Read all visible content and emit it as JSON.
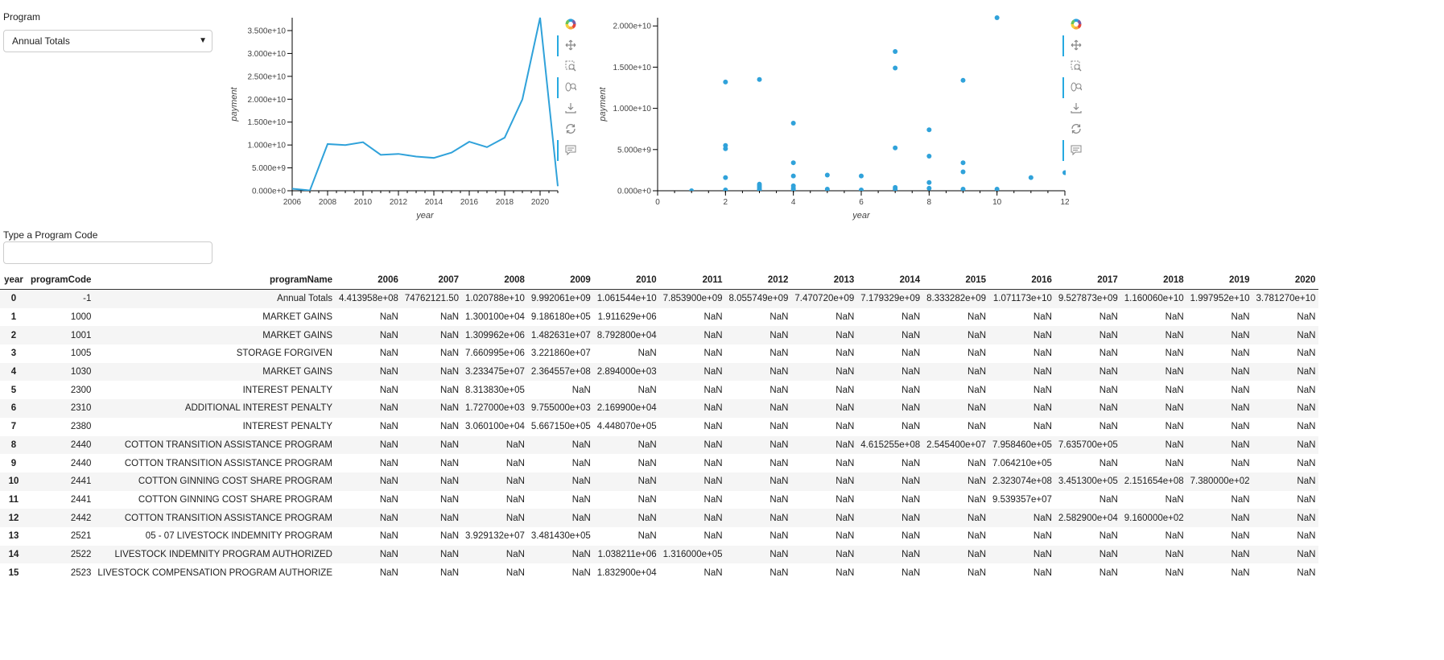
{
  "program": {
    "label": "Program",
    "selected": "Annual Totals"
  },
  "code": {
    "label": "Type a Program Code",
    "value": "",
    "placeholder": ""
  },
  "toolbar": {
    "icons": [
      "bokeh-logo-icon",
      "pan-icon",
      "box-zoom-icon",
      "wheel-zoom-icon",
      "save-icon",
      "reset-icon",
      "hover-icon"
    ]
  },
  "chart_data": [
    {
      "type": "line",
      "xlabel": "year",
      "ylabel": "payment",
      "xlim": [
        2006,
        2021
      ],
      "ylim": [
        0,
        37812700000.0
      ],
      "xticks": [
        "2006",
        "2008",
        "2010",
        "2012",
        "2014",
        "2016",
        "2018",
        "2020"
      ],
      "yticks": [
        "0.000e+0",
        "5.000e+9",
        "1.000e+10",
        "1.500e+10",
        "2.000e+10",
        "2.500e+10",
        "3.000e+10",
        "3.500e+10"
      ],
      "color": "#30a2da",
      "x": [
        2006,
        2007,
        2008,
        2009,
        2010,
        2011,
        2012,
        2013,
        2014,
        2015,
        2016,
        2017,
        2018,
        2019,
        2020,
        2021
      ],
      "y": [
        441395800.0,
        74762121.0,
        10207880000.0,
        9992061000.0,
        10615440000.0,
        7853900000.0,
        8055749000.0,
        7470720000.0,
        7179329000.0,
        8333282000.0,
        10711730000.0,
        9527873000.0,
        11600600000.0,
        19979520000.0,
        37812700000.0,
        1000000000.0
      ]
    },
    {
      "type": "scatter",
      "xlabel": "year",
      "ylabel": "payment",
      "xlim": [
        0,
        12
      ],
      "ylim": [
        0,
        21000000000.0
      ],
      "xticks": [
        "0",
        "2",
        "4",
        "6",
        "8",
        "10",
        "12"
      ],
      "yticks": [
        "0.000e+0",
        "5.000e+9",
        "1.000e+10",
        "1.500e+10",
        "2.000e+10"
      ],
      "color": "#30a2da",
      "x": [
        1,
        2,
        2,
        2,
        2,
        2,
        3,
        3,
        3,
        3,
        3,
        3,
        4,
        4,
        4,
        4,
        4,
        4,
        5,
        5,
        6,
        6,
        7,
        7,
        7,
        7,
        7,
        8,
        8,
        8,
        8,
        9,
        9,
        9,
        9,
        10,
        10,
        11,
        12
      ],
      "y": [
        0,
        13200000000.0,
        5500000000.0,
        5100000000.0,
        1600000000.0,
        100000000.0,
        13500000000.0,
        800000000.0,
        600000000.0,
        400000000.0,
        200000000.0,
        100000000.0,
        8200000000.0,
        3400000000.0,
        1800000000.0,
        600000000.0,
        300000000.0,
        100000000.0,
        1900000000.0,
        200000000.0,
        1800000000.0,
        100000000.0,
        16900000000.0,
        14900000000.0,
        5200000000.0,
        400000000.0,
        200000000.0,
        7400000000.0,
        4200000000.0,
        1000000000.0,
        300000000.0,
        13400000000.0,
        3400000000.0,
        2300000000.0,
        200000000.0,
        21000000000.0,
        200000000.0,
        1600000000.0,
        2200000000.0
      ]
    }
  ],
  "table": {
    "columns": [
      "year",
      "programCode",
      "programName",
      "2006",
      "2007",
      "2008",
      "2009",
      "2010",
      "2011",
      "2012",
      "2013",
      "2014",
      "2015",
      "2016",
      "2017",
      "2018",
      "2019",
      "2020"
    ],
    "rows": [
      [
        "0",
        "-1",
        "Annual Totals",
        "4.413958e+08",
        "74762121.50",
        "1.020788e+10",
        "9.992061e+09",
        "1.061544e+10",
        "7.853900e+09",
        "8.055749e+09",
        "7.470720e+09",
        "7.179329e+09",
        "8.333282e+09",
        "1.071173e+10",
        "9.527873e+09",
        "1.160060e+10",
        "1.997952e+10",
        "3.781270e+10"
      ],
      [
        "1",
        "1000",
        "MARKET GAINS",
        "NaN",
        "NaN",
        "1.300100e+04",
        "9.186180e+05",
        "1.911629e+06",
        "NaN",
        "NaN",
        "NaN",
        "NaN",
        "NaN",
        "NaN",
        "NaN",
        "NaN",
        "NaN",
        "NaN"
      ],
      [
        "2",
        "1001",
        "MARKET GAINS",
        "NaN",
        "NaN",
        "1.309962e+06",
        "1.482631e+07",
        "8.792800e+04",
        "NaN",
        "NaN",
        "NaN",
        "NaN",
        "NaN",
        "NaN",
        "NaN",
        "NaN",
        "NaN",
        "NaN"
      ],
      [
        "3",
        "1005",
        "STORAGE FORGIVEN",
        "NaN",
        "NaN",
        "7.660995e+06",
        "3.221860e+07",
        "NaN",
        "NaN",
        "NaN",
        "NaN",
        "NaN",
        "NaN",
        "NaN",
        "NaN",
        "NaN",
        "NaN",
        "NaN"
      ],
      [
        "4",
        "1030",
        "MARKET GAINS",
        "NaN",
        "NaN",
        "3.233475e+07",
        "2.364557e+08",
        "2.894000e+03",
        "NaN",
        "NaN",
        "NaN",
        "NaN",
        "NaN",
        "NaN",
        "NaN",
        "NaN",
        "NaN",
        "NaN"
      ],
      [
        "5",
        "2300",
        "INTEREST PENALTY",
        "NaN",
        "NaN",
        "8.313830e+05",
        "NaN",
        "NaN",
        "NaN",
        "NaN",
        "NaN",
        "NaN",
        "NaN",
        "NaN",
        "NaN",
        "NaN",
        "NaN",
        "NaN"
      ],
      [
        "6",
        "2310",
        "ADDITIONAL INTEREST PENALTY",
        "NaN",
        "NaN",
        "1.727000e+03",
        "9.755000e+03",
        "2.169900e+04",
        "NaN",
        "NaN",
        "NaN",
        "NaN",
        "NaN",
        "NaN",
        "NaN",
        "NaN",
        "NaN",
        "NaN"
      ],
      [
        "7",
        "2380",
        "INTEREST PENALTY",
        "NaN",
        "NaN",
        "3.060100e+04",
        "5.667150e+05",
        "4.448070e+05",
        "NaN",
        "NaN",
        "NaN",
        "NaN",
        "NaN",
        "NaN",
        "NaN",
        "NaN",
        "NaN",
        "NaN"
      ],
      [
        "8",
        "2440",
        "COTTON TRANSITION ASSISTANCE PROGRAM",
        "NaN",
        "NaN",
        "NaN",
        "NaN",
        "NaN",
        "NaN",
        "NaN",
        "NaN",
        "4.615255e+08",
        "2.545400e+07",
        "7.958460e+05",
        "7.635700e+05",
        "NaN",
        "NaN",
        "NaN"
      ],
      [
        "9",
        "2440",
        "COTTON TRANSITION ASSISTANCE PROGRAM",
        "NaN",
        "NaN",
        "NaN",
        "NaN",
        "NaN",
        "NaN",
        "NaN",
        "NaN",
        "NaN",
        "NaN",
        "7.064210e+05",
        "NaN",
        "NaN",
        "NaN",
        "NaN"
      ],
      [
        "10",
        "2441",
        "COTTON GINNING COST SHARE PROGRAM",
        "NaN",
        "NaN",
        "NaN",
        "NaN",
        "NaN",
        "NaN",
        "NaN",
        "NaN",
        "NaN",
        "NaN",
        "2.323074e+08",
        "3.451300e+05",
        "2.151654e+08",
        "7.380000e+02",
        "NaN"
      ],
      [
        "11",
        "2441",
        "COTTON GINNING COST SHARE PROGRAM",
        "NaN",
        "NaN",
        "NaN",
        "NaN",
        "NaN",
        "NaN",
        "NaN",
        "NaN",
        "NaN",
        "NaN",
        "9.539357e+07",
        "NaN",
        "NaN",
        "NaN",
        "NaN"
      ],
      [
        "12",
        "2442",
        "COTTON TRANSITION ASSISTANCE PROGRAM",
        "NaN",
        "NaN",
        "NaN",
        "NaN",
        "NaN",
        "NaN",
        "NaN",
        "NaN",
        "NaN",
        "NaN",
        "NaN",
        "2.582900e+04",
        "9.160000e+02",
        "NaN",
        "NaN"
      ],
      [
        "13",
        "2521",
        "05 - 07 LIVESTOCK INDEMNITY PROGRAM",
        "NaN",
        "NaN",
        "3.929132e+07",
        "3.481430e+05",
        "NaN",
        "NaN",
        "NaN",
        "NaN",
        "NaN",
        "NaN",
        "NaN",
        "NaN",
        "NaN",
        "NaN",
        "NaN"
      ],
      [
        "14",
        "2522",
        "LIVESTOCK INDEMNITY PROGRAM AUTHORIZED",
        "NaN",
        "NaN",
        "NaN",
        "NaN",
        "1.038211e+06",
        "1.316000e+05",
        "NaN",
        "NaN",
        "NaN",
        "NaN",
        "NaN",
        "NaN",
        "NaN",
        "NaN",
        "NaN"
      ],
      [
        "15",
        "2523",
        "LIVESTOCK COMPENSATION PROGRAM AUTHORIZE",
        "NaN",
        "NaN",
        "NaN",
        "NaN",
        "1.832900e+04",
        "NaN",
        "NaN",
        "NaN",
        "NaN",
        "NaN",
        "NaN",
        "NaN",
        "NaN",
        "NaN",
        "NaN"
      ]
    ]
  }
}
